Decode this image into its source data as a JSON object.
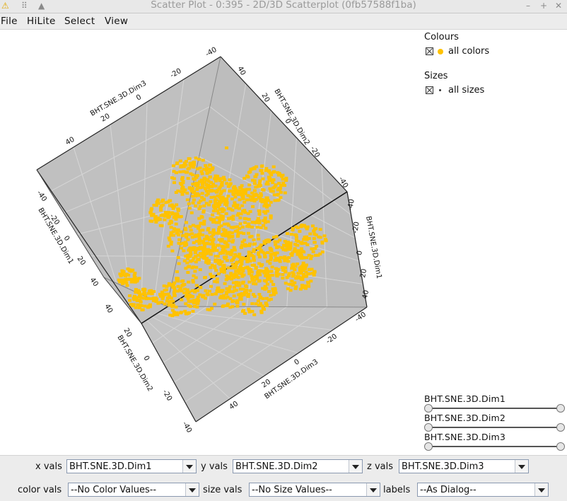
{
  "window": {
    "title": "Scatter Plot - 0:395 - 2D/3D Scatterplot (0fb57588f1ba)"
  },
  "menu": [
    "File",
    "HiLite",
    "Select",
    "View"
  ],
  "legend": {
    "colours_heading": "Colours",
    "colours_item": "all colors",
    "sizes_heading": "Sizes",
    "sizes_item": "all sizes",
    "point_color": "#ffc200"
  },
  "plot": {
    "box_fill": "#c0c0c0",
    "axes": {
      "x": "BHT.SNE.3D.Dim1",
      "y": "BHT.SNE.3D.Dim2",
      "z": "BHT.SNE.3D.Dim3"
    },
    "ticks": [
      "-40",
      "-20",
      "0",
      "20",
      "40"
    ]
  },
  "sliders": [
    {
      "label": "BHT.SNE.3D.Dim1",
      "range": [
        0,
        1
      ]
    },
    {
      "label": "BHT.SNE.3D.Dim2",
      "range": [
        0,
        1
      ]
    },
    {
      "label": "BHT.SNE.3D.Dim3",
      "range": [
        0,
        1
      ]
    }
  ],
  "controls": {
    "x_label": "x vals",
    "x_value": "BHT.SNE.3D.Dim1",
    "y_label": "y vals",
    "y_value": "BHT.SNE.3D.Dim2",
    "z_label": "z vals",
    "z_value": "BHT.SNE.3D.Dim3",
    "color_label": "color vals",
    "color_value": "--No Color Values--",
    "size_label": "size vals",
    "size_value": "--No Size Values--",
    "labels_label": "labels",
    "labels_value": "--As Dialog--"
  }
}
